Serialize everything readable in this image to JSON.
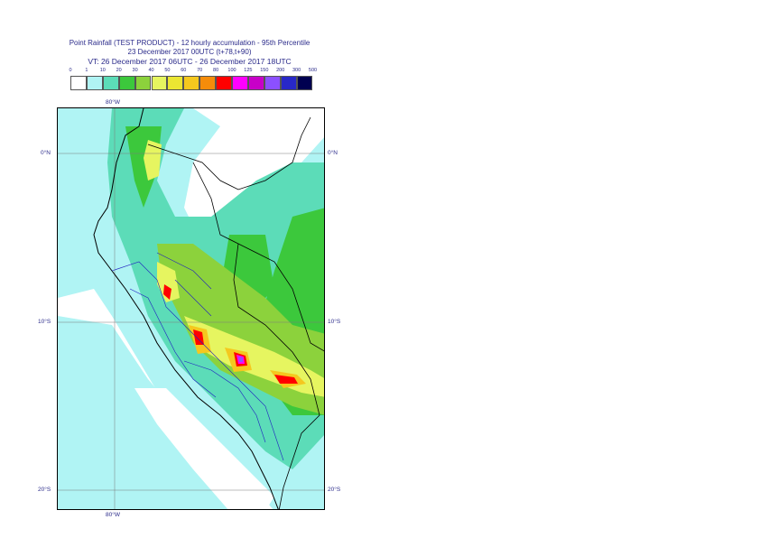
{
  "header": {
    "line1": "Point Rainfall (TEST PRODUCT) - 12 hourly accumulation - 95th Percentile",
    "line2": "23 December 2017 00UTC (t+78,t+90)",
    "line3": "VT: 26 December 2017 06UTC - 26 December 2017 18UTC"
  },
  "colorbar": {
    "thresholds": [
      "0",
      "1",
      "10",
      "20",
      "30",
      "40",
      "50",
      "60",
      "70",
      "80",
      "100",
      "125",
      "150",
      "200",
      "300",
      "500"
    ],
    "colors": [
      "#ffffff",
      "#b0f4f4",
      "#5cdcb8",
      "#3cc83c",
      "#8cd23c",
      "#e6f560",
      "#ebe632",
      "#f5c81e",
      "#f58c0a",
      "#ff0000",
      "#ff00ff",
      "#c800c8",
      "#8c50ff",
      "#2828c8",
      "#000050"
    ]
  },
  "axes": {
    "lat_labels": [
      "0°N",
      "10°S",
      "20°S"
    ],
    "lon_label": "80°W"
  }
}
